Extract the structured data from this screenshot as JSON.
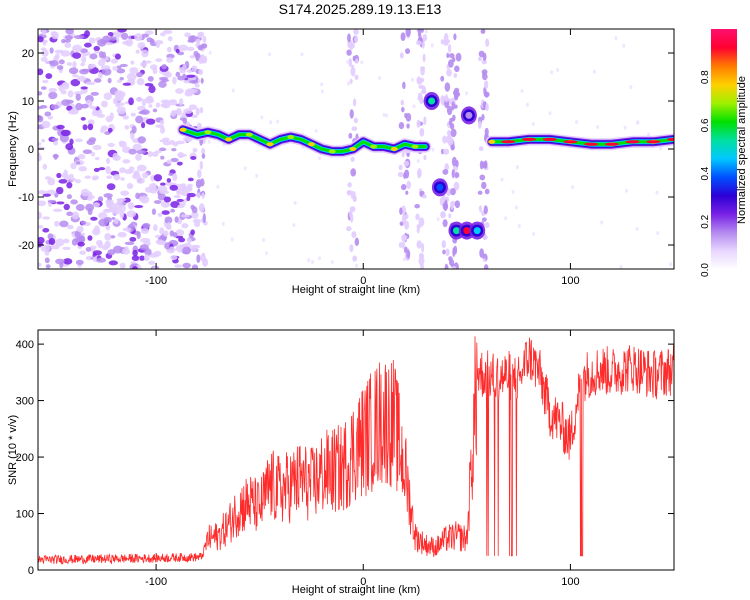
{
  "title": "S174.2025.289.19.13.E13",
  "chart_data": [
    {
      "type": "heatmap",
      "xlabel": "Height of straight line (km)",
      "ylabel": "Frequency (Hz)",
      "xlim": [
        -157,
        150
      ],
      "ylim": [
        -25,
        25
      ],
      "xticks": [
        -100,
        0,
        100
      ],
      "yticks": [
        -20,
        -10,
        0,
        10,
        20
      ],
      "colorbar": {
        "label": "Normalized spectral amplitude",
        "range": [
          0,
          1
        ],
        "ticks": [
          "0.0",
          "0.2",
          "0.4",
          "0.6",
          "0.8"
        ],
        "colors": [
          "#ffffff",
          "#e9d8ff",
          "#b58cf0",
          "#7a22e6",
          "#2c00d6",
          "#0050ff",
          "#00c8ff",
          "#00e0a0",
          "#00e000",
          "#a0f000",
          "#ffd000",
          "#ff7a00",
          "#ff0030",
          "#ff1070"
        ]
      },
      "ridge": {
        "x": [
          -87,
          -80,
          -75,
          -70,
          -65,
          -60,
          -55,
          -50,
          -45,
          -40,
          -35,
          -30,
          -25,
          -20,
          -15,
          -10,
          -5,
          0,
          5,
          10,
          15,
          20,
          25,
          30
        ],
        "y": [
          4,
          3,
          3.5,
          3,
          2,
          3,
          3,
          2,
          1,
          2,
          2.5,
          2,
          1,
          0,
          -0.5,
          -0.5,
          0,
          1.5,
          0.5,
          0.5,
          0,
          1,
          0.5,
          0.5
        ]
      },
      "ridge2": {
        "x": [
          62,
          70,
          80,
          90,
          100,
          110,
          120,
          130,
          140,
          150
        ],
        "y": [
          1.5,
          1.5,
          2,
          2,
          1.5,
          1,
          1,
          1.5,
          1.5,
          2
        ]
      },
      "blobs": [
        {
          "x": 33,
          "y": 10,
          "v": 0.55
        },
        {
          "x": 37,
          "y": -8,
          "v": 0.4
        },
        {
          "x": 45,
          "y": -17,
          "v": 0.5
        },
        {
          "x": 50,
          "y": -17,
          "v": 0.95
        },
        {
          "x": 55,
          "y": -17,
          "v": 0.45
        },
        {
          "x": 51,
          "y": 7,
          "v": 0.15
        }
      ]
    },
    {
      "type": "line",
      "xlabel": "Height of straight line (km)",
      "ylabel": "SNR (10 * v/v)",
      "xlim": [
        -157,
        150
      ],
      "ylim": [
        0,
        425
      ],
      "xticks": [
        -100,
        0,
        100
      ],
      "yticks": [
        0,
        100,
        200,
        300,
        400
      ],
      "series": [
        {
          "name": "SNR",
          "color": "#ff2a2a",
          "x": [
            -157,
            -140,
            -120,
            -100,
            -90,
            -78,
            -75,
            -70,
            -65,
            -60,
            -55,
            -50,
            -45,
            -40,
            -35,
            -30,
            -25,
            -20,
            -15,
            -10,
            -5,
            0,
            5,
            10,
            15,
            20,
            25,
            30,
            35,
            40,
            45,
            50,
            55,
            60,
            65,
            70,
            75,
            80,
            85,
            90,
            95,
            100,
            105,
            110,
            115,
            120,
            130,
            140,
            150
          ],
          "y": [
            18,
            19,
            20,
            21,
            22,
            23,
            55,
            60,
            80,
            110,
            120,
            110,
            150,
            140,
            150,
            160,
            150,
            170,
            175,
            180,
            210,
            230,
            250,
            270,
            260,
            180,
            60,
            45,
            40,
            55,
            60,
            55,
            350,
            345,
            340,
            345,
            340,
            380,
            350,
            280,
            260,
            230,
            340,
            350,
            355,
            350,
            360,
            345,
            355
          ]
        }
      ]
    }
  ]
}
